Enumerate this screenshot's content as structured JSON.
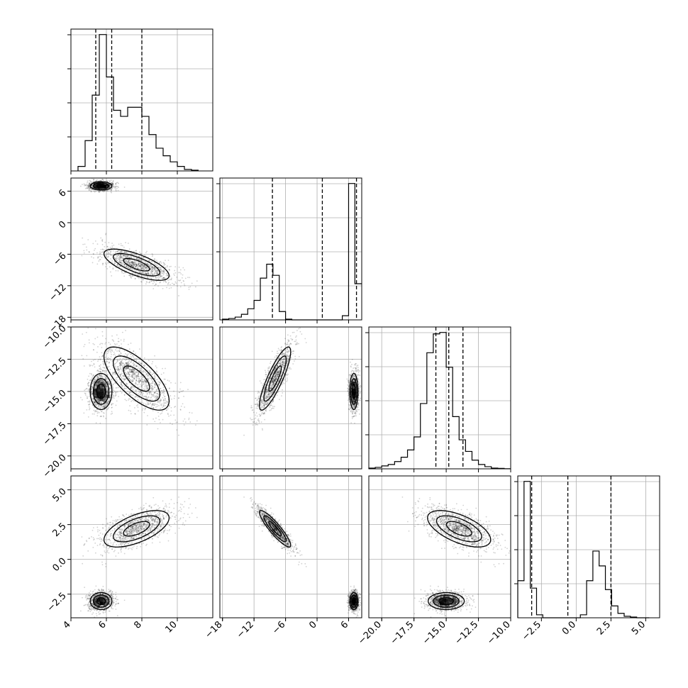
{
  "chart_data": {
    "type": "corner",
    "title": "",
    "parameters": [
      {
        "label": "",
        "range": [
          4,
          12
        ],
        "ticks": [
          4,
          6,
          8,
          10
        ],
        "tick_labels": [
          "4",
          "6",
          "8",
          "10"
        ],
        "quantiles": [
          5.4,
          6.3,
          8.0
        ]
      },
      {
        "label": "",
        "range": [
          -18.5,
          8.5
        ],
        "ticks": [
          -18,
          -12,
          -6,
          0,
          6
        ],
        "tick_labels": [
          "−18",
          "−12",
          "−6",
          "0",
          "6"
        ],
        "quantiles": [
          -8.5,
          1.0,
          7.5
        ]
      },
      {
        "label": "",
        "range": [
          -21,
          -10
        ],
        "ticks": [
          -20,
          -17.5,
          -15,
          -12.5,
          -10
        ],
        "tick_labels": [
          "−20.0",
          "−17.5",
          "−15.0",
          "−12.5",
          "−10.0"
        ],
        "quantiles": [
          -15.8,
          -14.8,
          -13.7
        ]
      },
      {
        "label": "",
        "range": [
          -4.2,
          6.0
        ],
        "ticks": [
          -2.5,
          0,
          2.5,
          5
        ],
        "tick_labels": [
          "−2.5",
          "0.0",
          "2.5",
          "5.0"
        ],
        "quantiles": [
          -3.2,
          -0.6,
          2.5
        ]
      }
    ],
    "histograms": [
      {
        "param": 0,
        "bins": [
          4.4,
          4.8,
          5.2,
          5.6,
          6.0,
          6.4,
          6.8,
          7.2,
          7.6,
          8.0,
          8.4,
          8.8,
          9.2,
          9.6,
          10.0,
          10.4,
          10.8,
          11.2
        ],
        "counts": [
          0.03,
          0.2,
          0.5,
          0.9,
          0.62,
          0.4,
          0.36,
          0.42,
          0.42,
          0.36,
          0.24,
          0.15,
          0.1,
          0.06,
          0.03,
          0.01,
          0.005
        ]
      },
      {
        "param": 1,
        "bins": [
          -18,
          -16.8,
          -15.6,
          -14.4,
          -13.2,
          -12,
          -10.8,
          -9.6,
          -8.4,
          -7.2,
          -6,
          -4.8,
          -3.6,
          -2.4,
          -1.2,
          0,
          1.2,
          2.4,
          3.6,
          4.8,
          6,
          7.2,
          8.5
        ],
        "counts": [
          0.005,
          0.01,
          0.02,
          0.04,
          0.08,
          0.14,
          0.3,
          0.4,
          0.32,
          0.06,
          0.005,
          0,
          0,
          0,
          0,
          0,
          0,
          0,
          0,
          0.03,
          0.98,
          0.26
        ]
      },
      {
        "param": 2,
        "bins": [
          -21,
          -20.5,
          -20,
          -19.5,
          -19,
          -18.5,
          -18,
          -17.5,
          -17,
          -16.5,
          -16,
          -15.5,
          -15,
          -14.5,
          -14,
          -13.5,
          -13,
          -12.5,
          -12,
          -11.5,
          -11,
          -10.5,
          -10
        ],
        "counts": [
          0.005,
          0.01,
          0.02,
          0.03,
          0.05,
          0.08,
          0.13,
          0.22,
          0.45,
          0.8,
          0.93,
          0.94,
          0.7,
          0.36,
          0.2,
          0.12,
          0.06,
          0.03,
          0.015,
          0.005,
          0.003,
          0.001
        ]
      },
      {
        "param": 3,
        "bins": [
          -4.2,
          -3.75,
          -3.3,
          -2.85,
          -2.4,
          -1.95,
          -1.5,
          -1.05,
          -0.6,
          -0.15,
          0.3,
          0.75,
          1.2,
          1.65,
          2.1,
          2.55,
          3.0,
          3.45,
          3.9,
          4.35,
          4.8,
          5.25
        ],
        "counts": [
          0.25,
          0.92,
          0.2,
          0.02,
          0,
          0,
          0,
          0,
          0,
          0,
          0.02,
          0.25,
          0.45,
          0.35,
          0.19,
          0.08,
          0.03,
          0.01,
          0.005,
          0,
          0
        ]
      }
    ],
    "clusters": [
      {
        "name": "",
        "weight": 0.45,
        "mean": [
          5.7,
          7.0,
          -15.0,
          -3.0
        ],
        "sd": [
          0.35,
          0.45,
          0.8,
          0.35
        ]
      },
      {
        "name": "",
        "weight": 0.55,
        "mean": [
          7.7,
          -8.0,
          -14.0,
          2.2
        ],
        "sd": [
          1.05,
          1.7,
          1.4,
          0.75
        ],
        "correlations": {
          "0-1": -0.7,
          "0-2": -0.7,
          "0-3": 0.6,
          "1-2": 0.85,
          "1-3": -0.9,
          "2-3": -0.6
        }
      }
    ],
    "grid": true,
    "legend": "none"
  },
  "colors": {
    "ink": "#000000",
    "grid": "#b0b0b0",
    "scatter": "#000000"
  }
}
